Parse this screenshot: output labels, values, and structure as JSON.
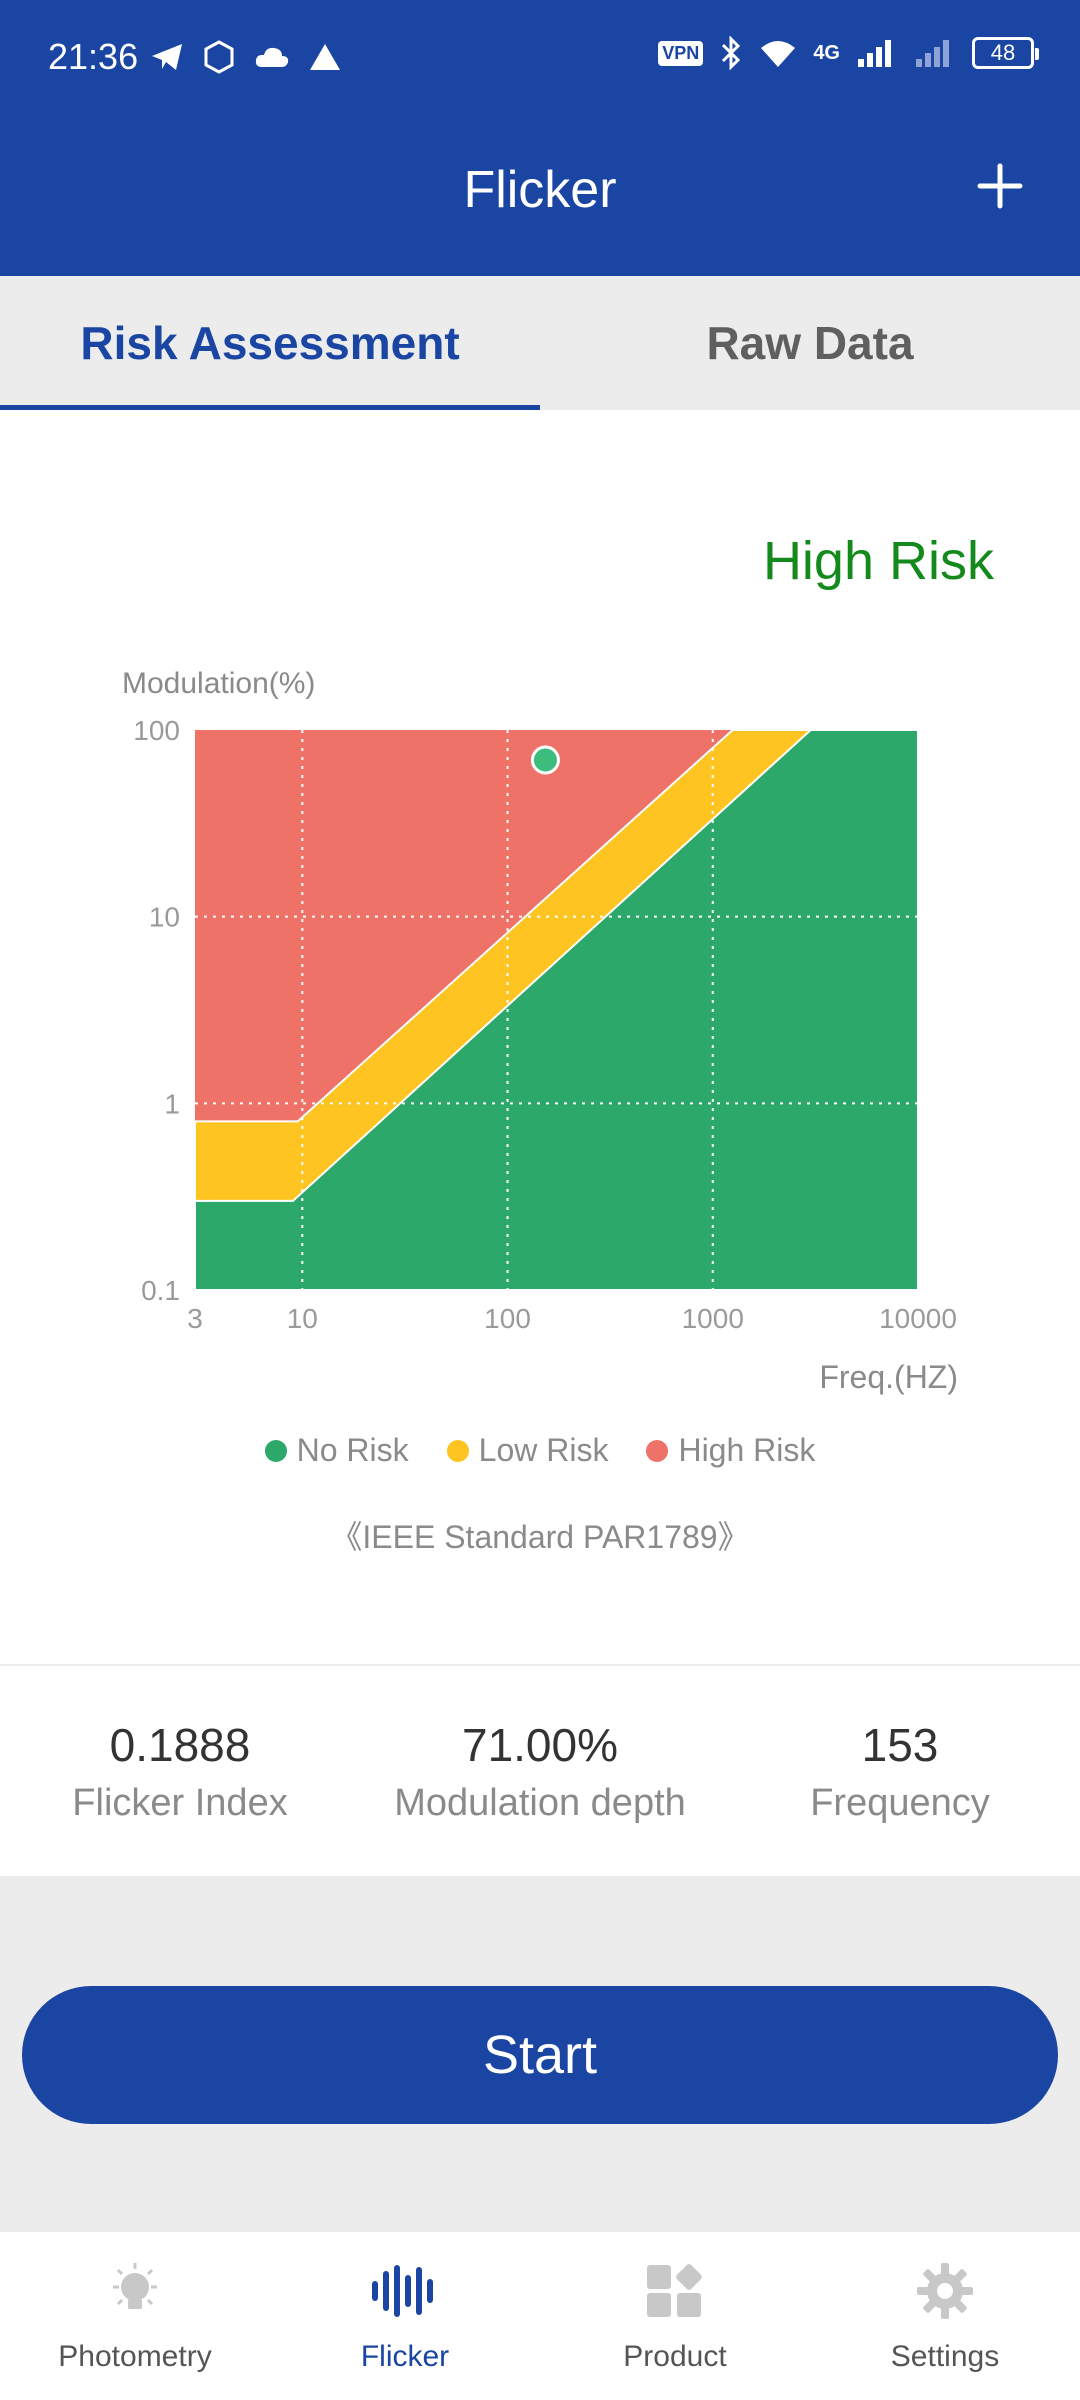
{
  "status_bar": {
    "time": "21:36",
    "battery": "48",
    "network": "4G",
    "vpn": "VPN",
    "icons": [
      "telegram-icon",
      "gosuslugi-icon",
      "cloud-icon",
      "triangle-icon",
      "bluetooth-icon",
      "wifi-icon",
      "signal-icon"
    ]
  },
  "header": {
    "title": "Flicker",
    "add_icon": "plus-icon"
  },
  "tabs": [
    {
      "label": "Risk Assessment",
      "active": true
    },
    {
      "label": "Raw Data",
      "active": false
    }
  ],
  "assessment": {
    "risk_level": "High Risk",
    "risk_color": "#148a1c"
  },
  "chart_data": {
    "type": "scatter",
    "ylabel": "Modulation(%)",
    "xlabel": "Freq.(HZ)",
    "x_scale": "log",
    "y_scale": "log",
    "xlim": [
      3,
      10000
    ],
    "ylim": [
      0.1,
      100
    ],
    "x_ticks": [
      "3",
      "10",
      "100",
      "1000",
      "10000"
    ],
    "y_ticks": [
      "100",
      "10",
      "1",
      "0.1"
    ],
    "grid": true,
    "regions": [
      {
        "name": "No Risk",
        "color": "#2da86b"
      },
      {
        "name": "Low Risk",
        "color": "#fec421"
      },
      {
        "name": "High Risk",
        "color": "#ee7268"
      }
    ],
    "measurement": {
      "x": 153,
      "y": 71,
      "color": "#3dbd7d"
    },
    "standard": "《IEEE Standard PAR1789》"
  },
  "metrics": [
    {
      "value": "0.1888",
      "label": "Flicker Index"
    },
    {
      "value": "71.00%",
      "label": "Modulation depth"
    },
    {
      "value": "153",
      "label": "Frequency"
    }
  ],
  "actions": {
    "start_label": "Start"
  },
  "bottom_nav": [
    {
      "label": "Photometry",
      "icon": "bulb-icon",
      "active": false
    },
    {
      "label": "Flicker",
      "icon": "waveform-icon",
      "active": true
    },
    {
      "label": "Product",
      "icon": "grid-icon",
      "active": false
    },
    {
      "label": "Settings",
      "icon": "gear-icon",
      "active": false
    }
  ],
  "colors": {
    "primary": "#1a45a3",
    "background": "#ececec"
  }
}
